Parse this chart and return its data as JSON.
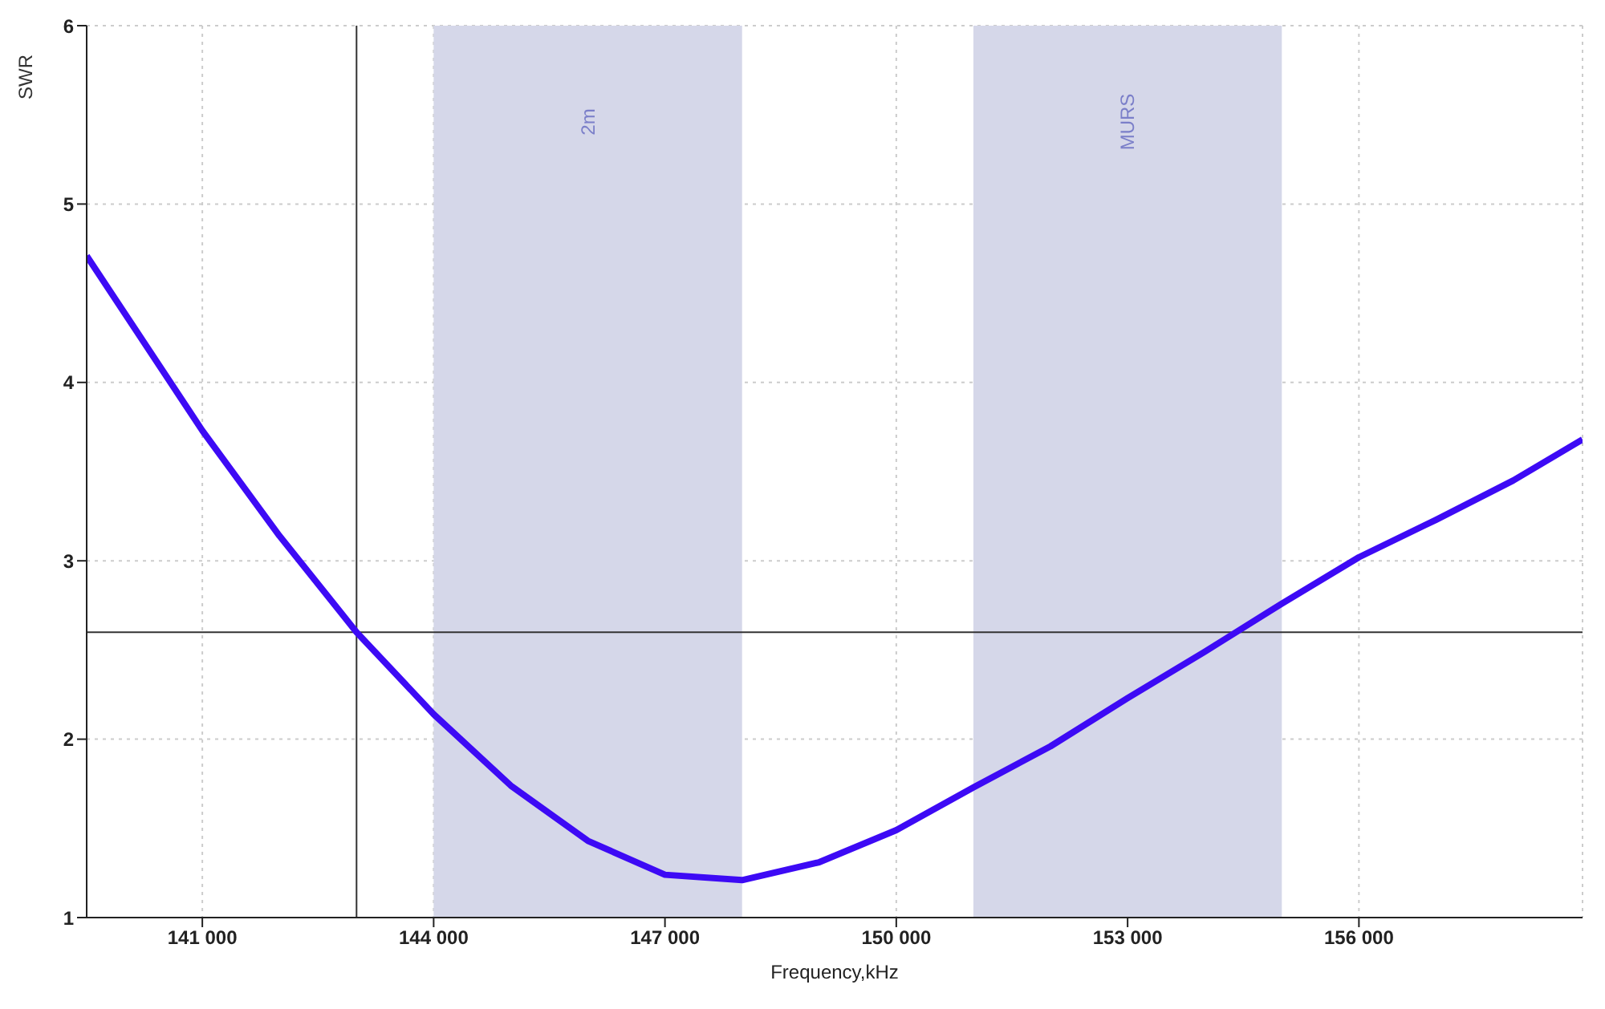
{
  "chart_data": {
    "type": "line",
    "xlabel": "Frequency,kHz",
    "ylabel": "SWR",
    "x": [
      139500,
      141000,
      142000,
      143000,
      144000,
      145000,
      146000,
      147000,
      148000,
      149000,
      150000,
      151000,
      152000,
      153000,
      154000,
      155000,
      156000,
      157000,
      158000,
      158900
    ],
    "series": [
      {
        "color": "#3d0af5",
        "values": [
          4.71,
          3.73,
          3.14,
          2.6,
          2.14,
          1.74,
          1.43,
          1.24,
          1.21,
          1.31,
          1.49,
          1.73,
          1.96,
          2.23,
          2.49,
          2.76,
          3.02,
          3.23,
          3.45,
          3.68
        ]
      }
    ],
    "xlim": [
      139500,
      158900
    ],
    "xticks": [
      {
        "value": 141000,
        "label": "141 000"
      },
      {
        "value": 144000,
        "label": "144 000"
      },
      {
        "value": 147000,
        "label": "147 000"
      },
      {
        "value": 150000,
        "label": "150 000"
      },
      {
        "value": 153000,
        "label": "153 000"
      },
      {
        "value": 156000,
        "label": "156 000"
      }
    ],
    "ylim": [
      1,
      6
    ],
    "yticks": [
      1,
      2,
      3,
      4,
      5,
      6
    ],
    "grid": true,
    "marker": "none",
    "line_style": "solid",
    "bands": [
      {
        "axis": "x",
        "from": 144000,
        "to": 148000,
        "label": "2m",
        "color": "#d5d7e9"
      },
      {
        "axis": "x",
        "from": 151000,
        "to": 155000,
        "label": "MURS",
        "color": "#d5d7e9"
      }
    ],
    "ref_lines": [
      {
        "axis": "x",
        "value": 143000,
        "label": null,
        "color": "#333333"
      },
      {
        "axis": "y",
        "value": 2.6,
        "label": null,
        "color": "#333333"
      }
    ]
  }
}
